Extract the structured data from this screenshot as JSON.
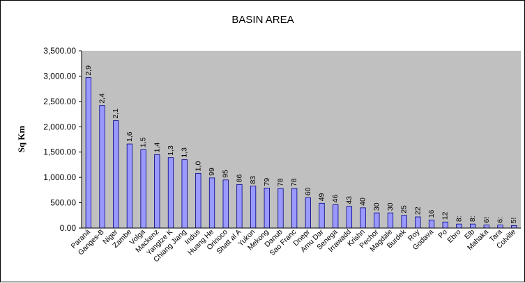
{
  "chart_data": {
    "type": "bar",
    "title": "BASIN AREA",
    "xlabel": "",
    "ylabel": "Sq Km",
    "ylim": [
      0,
      3500
    ],
    "yticks": [
      "0.00",
      "500.00",
      "1,000.00",
      "1,500.00",
      "2,000.00",
      "2,500.00",
      "3,000.00",
      "3,500.00"
    ],
    "grid": false,
    "legend": false,
    "colors": {
      "bar": "#9999ff",
      "bar_edge": "#000080",
      "plot_bg": "#c0c0c0"
    },
    "categories": [
      "Paraná",
      "Ganges-B",
      "Niger",
      "Zambe",
      "Volga",
      "Mackenz",
      "Yangtze K",
      "Chiang Jiang",
      "Indus",
      "Huang He",
      "Orinoco",
      "Shatt al A",
      "Yukon",
      "Mekong",
      "Danub",
      "Sao Franc",
      "Dnepr",
      "Amu Dar",
      "Senega",
      "Irrawadd",
      "Krishn",
      "Pechor",
      "Magdale",
      "Burdek",
      "Roy",
      "Godava",
      "Po",
      "Ebro",
      "Elb",
      "Mahaka",
      "Tara",
      "Colville"
    ],
    "values": [
      2970,
      2420,
      2120,
      1660,
      1550,
      1450,
      1390,
      1350,
      1080,
      990,
      950,
      860,
      830,
      790,
      780,
      780,
      600,
      490,
      460,
      430,
      400,
      300,
      300,
      250,
      220,
      160,
      120,
      80,
      80,
      60,
      60,
      50
    ],
    "data_labels": [
      "2,9",
      "2,4",
      "2,1",
      "1,6",
      "1,5",
      "1,4",
      "1,3",
      "1,3",
      "1,0",
      "99",
      "95",
      "86",
      "83",
      "79",
      "78",
      "78",
      "60",
      "49",
      "46",
      "43",
      "40",
      "30",
      "30",
      "25",
      "22",
      "16",
      "12",
      "8:",
      "8:",
      "6!",
      "6:",
      "5!"
    ]
  }
}
